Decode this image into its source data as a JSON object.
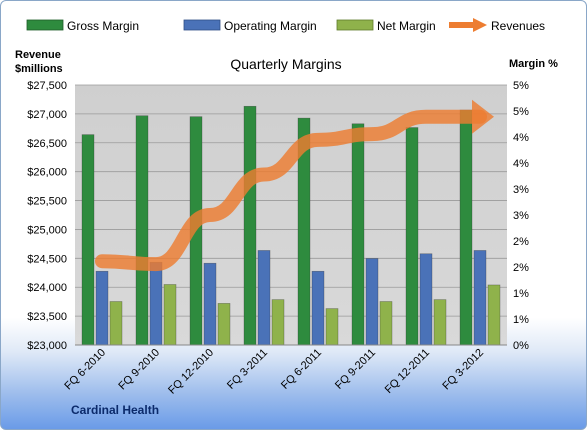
{
  "chart_data": {
    "type": "bar",
    "title": "Quarterly Margins",
    "categories": [
      "FQ 6-2010",
      "FQ 9-2010",
      "FQ 12-2010",
      "FQ 3-2011",
      "FQ 6-2011",
      "FQ 9-2011",
      "FQ 12-2011",
      "FQ 3-2012"
    ],
    "series": [
      {
        "name": "Gross Margin",
        "axis": "right",
        "color": "#2e8b3e",
        "values": [
          4.45,
          4.85,
          4.83,
          5.05,
          4.8,
          4.68,
          4.6,
          4.97
        ]
      },
      {
        "name": "Operating Margin",
        "axis": "right",
        "color": "#4a72b8",
        "values": [
          1.56,
          1.75,
          1.73,
          2.0,
          1.56,
          1.83,
          1.93,
          2.0
        ]
      },
      {
        "name": "Net Margin",
        "axis": "right",
        "color": "#8fb24b",
        "values": [
          0.92,
          1.28,
          0.88,
          0.96,
          0.77,
          0.92,
          0.96,
          1.27
        ]
      },
      {
        "name": "Revenues",
        "type": "line",
        "axis": "left",
        "color": "#ed7d31",
        "values": [
          24450,
          24400,
          25250,
          25950,
          26550,
          26650,
          26950,
          26950
        ]
      }
    ],
    "left_axis": {
      "title_lines": [
        "Revenue",
        "$millions"
      ],
      "ticks": [
        "$27,500",
        "$27,000",
        "$26,500",
        "$26,000",
        "$25,500",
        "$25,000",
        "$24,500",
        "$24,000",
        "$23,500",
        "$23,000"
      ],
      "ylim": [
        23000,
        27500
      ]
    },
    "right_axis": {
      "title": "Margin %",
      "ticks": [
        "5%",
        "5%",
        "4%",
        "4%",
        "3%",
        "3%",
        "2%",
        "2%",
        "1%",
        "1%",
        "0%"
      ],
      "ylim": [
        0,
        5.5
      ]
    },
    "legend_position": "top",
    "grid": true,
    "footer": "Cardinal Health"
  }
}
